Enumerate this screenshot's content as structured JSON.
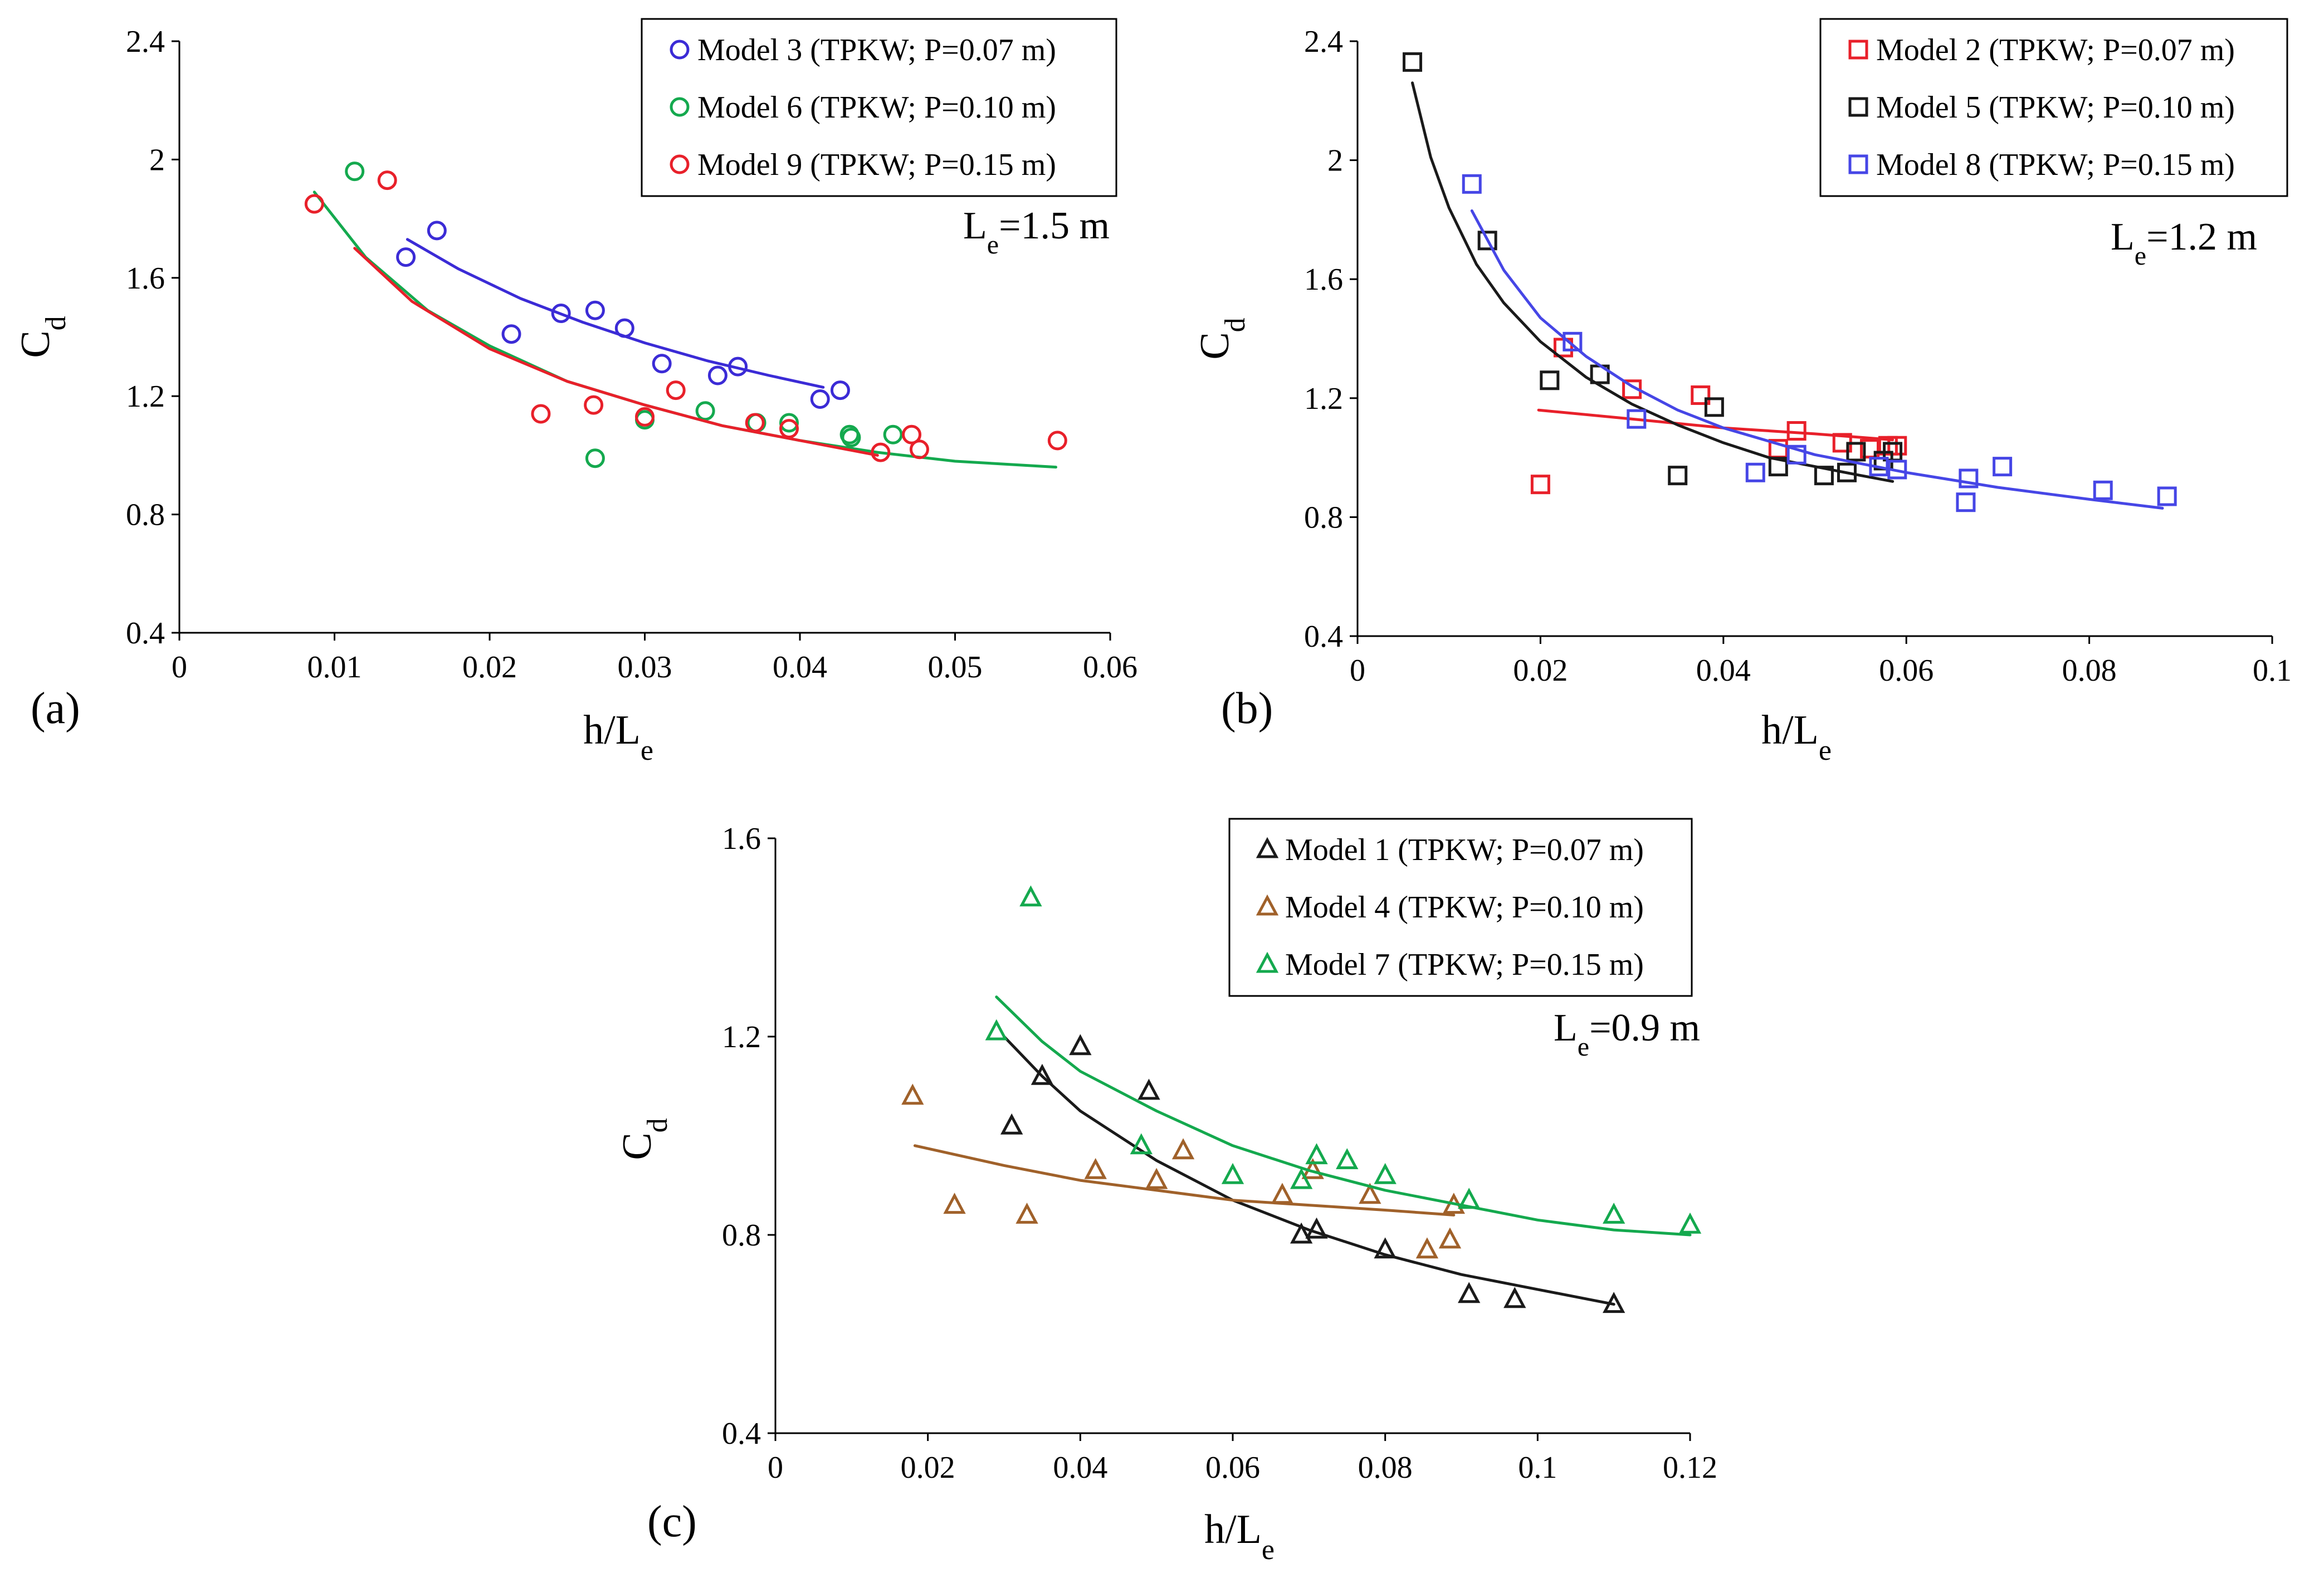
{
  "chart_data": [
    {
      "type": "scatter",
      "panel_label": "(a)",
      "annotation": {
        "main": "L",
        "sub": "e",
        "rest": "=1.5 m"
      },
      "xlabel": {
        "main": "h/L",
        "sub": "e"
      },
      "ylabel": {
        "main": "C",
        "sub": "d"
      },
      "xlim": [
        0,
        0.06
      ],
      "ylim": [
        0.4,
        2.4
      ],
      "x_ticks": [
        0,
        0.01,
        0.02,
        0.03,
        0.04,
        0.05,
        0.06
      ],
      "x_tick_labels": [
        "0",
        "0.01",
        "0.02",
        "0.03",
        "0.04",
        "0.05",
        "0.06"
      ],
      "y_ticks": [
        0.4,
        0.8,
        1.2,
        1.6,
        2.0,
        2.4
      ],
      "y_tick_labels": [
        "0.4",
        "0.8",
        "1.2",
        "1.6",
        "2",
        "2.4"
      ],
      "legend_position": "top-right",
      "series": [
        {
          "name": "Model 3 (TPKW; P=0.07 m)",
          "marker": "circle",
          "color": "#3b2bd6",
          "points": [
            [
              0.0146,
              1.67
            ],
            [
              0.0166,
              1.76
            ],
            [
              0.0214,
              1.41
            ],
            [
              0.0246,
              1.48
            ],
            [
              0.0268,
              1.49
            ],
            [
              0.0287,
              1.43
            ],
            [
              0.0311,
              1.31
            ],
            [
              0.0347,
              1.27
            ],
            [
              0.036,
              1.3
            ],
            [
              0.0413,
              1.19
            ],
            [
              0.0426,
              1.22
            ]
          ],
          "fit": [
            [
              0.0147,
              1.73
            ],
            [
              0.018,
              1.63
            ],
            [
              0.022,
              1.53
            ],
            [
              0.026,
              1.45
            ],
            [
              0.03,
              1.38
            ],
            [
              0.034,
              1.32
            ],
            [
              0.038,
              1.27
            ],
            [
              0.0415,
              1.23
            ]
          ]
        },
        {
          "name": "Model 6 (TPKW; P=0.10 m)",
          "marker": "circle",
          "color": "#14a94e",
          "points": [
            [
              0.0113,
              1.96
            ],
            [
              0.0268,
              0.99
            ],
            [
              0.03,
              1.12
            ],
            [
              0.0339,
              1.15
            ],
            [
              0.0372,
              1.11
            ],
            [
              0.0393,
              1.11
            ],
            [
              0.0432,
              1.07
            ],
            [
              0.0433,
              1.06
            ],
            [
              0.046,
              1.07
            ]
          ],
          "fit": [
            [
              0.0087,
              1.89
            ],
            [
              0.012,
              1.67
            ],
            [
              0.016,
              1.49
            ],
            [
              0.02,
              1.37
            ],
            [
              0.025,
              1.25
            ],
            [
              0.03,
              1.17
            ],
            [
              0.035,
              1.1
            ],
            [
              0.04,
              1.05
            ],
            [
              0.045,
              1.01
            ],
            [
              0.05,
              0.98
            ],
            [
              0.0565,
              0.96
            ]
          ]
        },
        {
          "name": "Model 9 (TPKW; P=0.15 m)",
          "marker": "circle",
          "color": "#e8202a",
          "points": [
            [
              0.0087,
              1.85
            ],
            [
              0.0134,
              1.93
            ],
            [
              0.0233,
              1.14
            ],
            [
              0.0267,
              1.17
            ],
            [
              0.03,
              1.13
            ],
            [
              0.032,
              1.22
            ],
            [
              0.0371,
              1.11
            ],
            [
              0.0393,
              1.09
            ],
            [
              0.0452,
              1.01
            ],
            [
              0.0472,
              1.07
            ],
            [
              0.0477,
              1.02
            ],
            [
              0.0566,
              1.05
            ]
          ],
          "fit": [
            [
              0.0113,
              1.7
            ],
            [
              0.015,
              1.52
            ],
            [
              0.02,
              1.36
            ],
            [
              0.025,
              1.25
            ],
            [
              0.03,
              1.17
            ],
            [
              0.035,
              1.1
            ],
            [
              0.04,
              1.05
            ],
            [
              0.045,
              1.0
            ]
          ]
        }
      ]
    },
    {
      "type": "scatter",
      "panel_label": "(b)",
      "annotation": {
        "main": "L",
        "sub": "e",
        "rest": "=1.2 m"
      },
      "xlabel": {
        "main": "h/L",
        "sub": "e"
      },
      "ylabel": {
        "main": "C",
        "sub": "d"
      },
      "xlim": [
        0,
        0.1
      ],
      "ylim": [
        0.4,
        2.4
      ],
      "x_ticks": [
        0,
        0.02,
        0.04,
        0.06,
        0.08,
        0.1
      ],
      "x_tick_labels": [
        "0",
        "0.02",
        "0.04",
        "0.06",
        "0.08",
        "0.1"
      ],
      "y_ticks": [
        0.4,
        0.8,
        1.2,
        1.6,
        2.0,
        2.4
      ],
      "y_tick_labels": [
        "0.4",
        "0.8",
        "1.2",
        "1.6",
        "2",
        "2.4"
      ],
      "legend_position": "top-right",
      "series": [
        {
          "name": "Model 2 (TPKW; P=0.07 m)",
          "marker": "square",
          "color": "#e8202a",
          "points": [
            [
              0.02,
              0.91
            ],
            [
              0.0225,
              1.37
            ],
            [
              0.03,
              1.23
            ],
            [
              0.0375,
              1.21
            ],
            [
              0.046,
              1.03
            ],
            [
              0.048,
              1.09
            ],
            [
              0.053,
              1.05
            ],
            [
              0.056,
              1.03
            ],
            [
              0.058,
              1.04
            ],
            [
              0.059,
              1.04
            ]
          ],
          "fit": [
            [
              0.0198,
              1.16
            ],
            [
              0.03,
              1.13
            ],
            [
              0.04,
              1.1
            ],
            [
              0.05,
              1.08
            ],
            [
              0.0585,
              1.06
            ]
          ]
        },
        {
          "name": "Model 5 (TPKW; P=0.10 m)",
          "marker": "square",
          "color": "#1a1a1a",
          "points": [
            [
              0.006,
              2.33
            ],
            [
              0.0142,
              1.73
            ],
            [
              0.021,
              1.26
            ],
            [
              0.0265,
              1.28
            ],
            [
              0.035,
              0.94
            ],
            [
              0.039,
              1.17
            ],
            [
              0.046,
              0.97
            ],
            [
              0.051,
              0.94
            ],
            [
              0.0535,
              0.95
            ],
            [
              0.0545,
              1.02
            ],
            [
              0.0575,
              0.99
            ],
            [
              0.0585,
              1.02
            ]
          ],
          "fit": [
            [
              0.006,
              2.26
            ],
            [
              0.008,
              2.01
            ],
            [
              0.01,
              1.84
            ],
            [
              0.013,
              1.65
            ],
            [
              0.016,
              1.52
            ],
            [
              0.02,
              1.39
            ],
            [
              0.025,
              1.27
            ],
            [
              0.03,
              1.18
            ],
            [
              0.035,
              1.11
            ],
            [
              0.04,
              1.05
            ],
            [
              0.045,
              1.0
            ],
            [
              0.05,
              0.97
            ],
            [
              0.055,
              0.94
            ],
            [
              0.0585,
              0.92
            ]
          ]
        },
        {
          "name": "Model 8 (TPKW; P=0.15 m)",
          "marker": "square",
          "color": "#4646e6",
          "points": [
            [
              0.0125,
              1.92
            ],
            [
              0.0235,
              1.39
            ],
            [
              0.0305,
              1.13
            ],
            [
              0.0435,
              0.95
            ],
            [
              0.048,
              1.01
            ],
            [
              0.057,
              0.97
            ],
            [
              0.059,
              0.96
            ],
            [
              0.0665,
              0.85
            ],
            [
              0.0668,
              0.93
            ],
            [
              0.0705,
              0.97
            ],
            [
              0.0815,
              0.89
            ],
            [
              0.0885,
              0.87
            ]
          ],
          "fit": [
            [
              0.0125,
              1.83
            ],
            [
              0.016,
              1.63
            ],
            [
              0.02,
              1.47
            ],
            [
              0.025,
              1.34
            ],
            [
              0.03,
              1.24
            ],
            [
              0.035,
              1.16
            ],
            [
              0.04,
              1.1
            ],
            [
              0.05,
              1.01
            ],
            [
              0.06,
              0.95
            ],
            [
              0.07,
              0.9
            ],
            [
              0.08,
              0.86
            ],
            [
              0.088,
              0.83
            ]
          ]
        }
      ]
    },
    {
      "type": "scatter",
      "panel_label": "(c)",
      "annotation": {
        "main": "L",
        "sub": "e",
        "rest": "=0.9 m"
      },
      "xlabel": {
        "main": "h/L",
        "sub": "e"
      },
      "ylabel": {
        "main": "C",
        "sub": "d"
      },
      "xlim": [
        0,
        0.12
      ],
      "ylim": [
        0.4,
        1.6
      ],
      "x_ticks": [
        0,
        0.02,
        0.04,
        0.06,
        0.08,
        0.1,
        0.12
      ],
      "x_tick_labels": [
        "0",
        "0.02",
        "0.04",
        "0.06",
        "0.08",
        "0.1",
        "0.12"
      ],
      "y_ticks": [
        0.4,
        0.8,
        1.2,
        1.6
      ],
      "y_tick_labels": [
        "0.4",
        "0.8",
        "1.2",
        "1.6"
      ],
      "legend_position": "top-right",
      "series": [
        {
          "name": "Model 1 (TPKW; P=0.07 m)",
          "marker": "triangle",
          "color": "#1a1a1a",
          "points": [
            [
              0.031,
              1.02
            ],
            [
              0.035,
              1.12
            ],
            [
              0.04,
              1.18
            ],
            [
              0.049,
              1.09
            ],
            [
              0.069,
              0.8
            ],
            [
              0.071,
              0.81
            ],
            [
              0.08,
              0.77
            ],
            [
              0.091,
              0.68
            ],
            [
              0.097,
              0.67
            ],
            [
              0.11,
              0.66
            ]
          ],
          "fit": [
            [
              0.03,
              1.2
            ],
            [
              0.035,
              1.12
            ],
            [
              0.04,
              1.05
            ],
            [
              0.05,
              0.95
            ],
            [
              0.06,
              0.87
            ],
            [
              0.07,
              0.81
            ],
            [
              0.08,
              0.76
            ],
            [
              0.09,
              0.72
            ],
            [
              0.1,
              0.69
            ],
            [
              0.11,
              0.66
            ]
          ]
        },
        {
          "name": "Model 4 (TPKW; P=0.10 m)",
          "marker": "triangle",
          "color": "#a0612a",
          "points": [
            [
              0.018,
              1.08
            ],
            [
              0.0235,
              0.86
            ],
            [
              0.033,
              0.84
            ],
            [
              0.042,
              0.93
            ],
            [
              0.05,
              0.91
            ],
            [
              0.0535,
              0.97
            ],
            [
              0.0665,
              0.88
            ],
            [
              0.0705,
              0.93
            ],
            [
              0.078,
              0.88
            ],
            [
              0.0855,
              0.77
            ],
            [
              0.0885,
              0.79
            ],
            [
              0.089,
              0.86
            ]
          ],
          "fit": [
            [
              0.0183,
              0.98
            ],
            [
              0.03,
              0.94
            ],
            [
              0.04,
              0.91
            ],
            [
              0.05,
              0.89
            ],
            [
              0.06,
              0.87
            ],
            [
              0.07,
              0.86
            ],
            [
              0.08,
              0.85
            ],
            [
              0.089,
              0.84
            ]
          ]
        },
        {
          "name": "Model 7 (TPKW; P=0.15 m)",
          "marker": "triangle",
          "color": "#14a94e",
          "points": [
            [
              0.029,
              1.21
            ],
            [
              0.0335,
              1.48
            ],
            [
              0.048,
              0.98
            ],
            [
              0.06,
              0.92
            ],
            [
              0.069,
              0.91
            ],
            [
              0.071,
              0.96
            ],
            [
              0.075,
              0.95
            ],
            [
              0.08,
              0.92
            ],
            [
              0.091,
              0.87
            ],
            [
              0.11,
              0.84
            ],
            [
              0.12,
              0.82
            ]
          ],
          "fit": [
            [
              0.029,
              1.28
            ],
            [
              0.035,
              1.19
            ],
            [
              0.04,
              1.13
            ],
            [
              0.05,
              1.05
            ],
            [
              0.06,
              0.98
            ],
            [
              0.07,
              0.93
            ],
            [
              0.08,
              0.89
            ],
            [
              0.09,
              0.86
            ],
            [
              0.1,
              0.83
            ],
            [
              0.11,
              0.81
            ],
            [
              0.12,
              0.8
            ]
          ]
        }
      ]
    }
  ]
}
